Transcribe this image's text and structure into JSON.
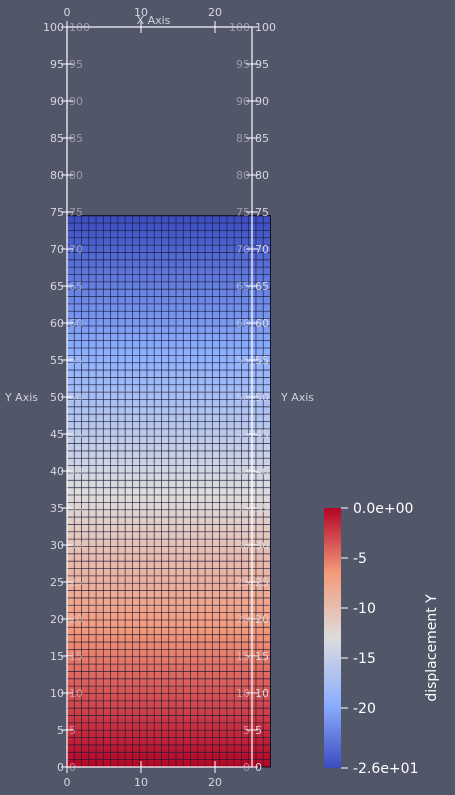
{
  "chart_data": {
    "type": "heatmap",
    "axes": {
      "x_title": "X Axis",
      "y_title": "Y Axis",
      "x_range": [
        0,
        25
      ],
      "y_range": [
        0,
        100
      ],
      "x_ticks": [
        0,
        10,
        20
      ],
      "y_ticks": [
        0,
        5,
        10,
        15,
        20,
        25,
        30,
        35,
        40,
        45,
        50,
        55,
        60,
        65,
        70,
        75,
        80,
        85,
        90,
        95,
        100
      ],
      "x_tick_labels": [
        "0",
        "10",
        "20"
      ],
      "y_tick_labels": [
        "0",
        "5",
        "10",
        "15",
        "20",
        "25",
        "30",
        "35",
        "40",
        "45",
        "50",
        "55",
        "60",
        "65",
        "70",
        "75",
        "80",
        "85",
        "90",
        "95",
        "100"
      ]
    },
    "mesh": {
      "x_extent": [
        0,
        27.5
      ],
      "y_extent": [
        0,
        74.5
      ],
      "cols": 28,
      "rows": 75
    },
    "field": {
      "name": "displacement Y",
      "range": [
        -26,
        0
      ],
      "top_value": -26,
      "bottom_value": 0
    },
    "colorbar": {
      "title": "displacement Y",
      "ticks": [
        0,
        -5,
        -10,
        -15,
        -20,
        -26
      ],
      "labels": [
        "0.0e+00",
        "-5",
        "-10",
        "-15",
        "-20",
        "-2.6e+01"
      ],
      "colors": [
        "#b40426",
        "#f7b79b",
        "#dddcdc",
        "#8db0fe",
        "#3b4cc0"
      ]
    }
  }
}
